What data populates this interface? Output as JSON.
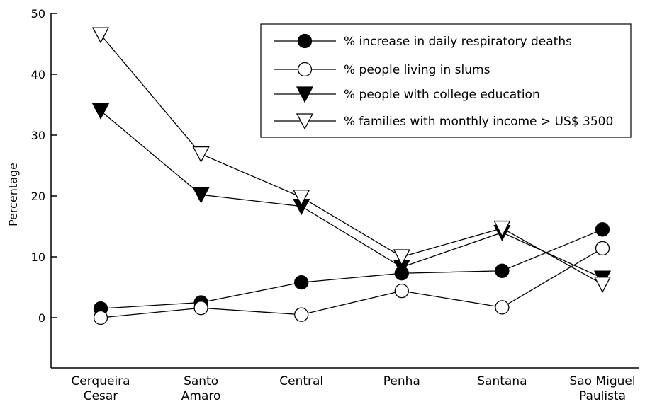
{
  "chart_data": {
    "type": "line",
    "categories": [
      [
        "Cerqueira",
        "Cesar"
      ],
      [
        "Santo",
        "Amaro"
      ],
      [
        "Central"
      ],
      [
        "Penha"
      ],
      [
        "Santana"
      ],
      [
        "Sao Miguel",
        "Paulista"
      ]
    ],
    "ylabel": "Percentage",
    "ylim": [
      -9,
      50
    ],
    "yticks": [
      0,
      10,
      20,
      30,
      40,
      50
    ],
    "legend_position": "top-right",
    "series": [
      {
        "name": "% increase in daily respiratory deaths",
        "marker": "circle-filled",
        "values": [
          1.5,
          2.5,
          5.8,
          7.3,
          7.7,
          14.5
        ]
      },
      {
        "name": "% people living in slums",
        "marker": "circle-open",
        "values": [
          0.0,
          1.6,
          0.5,
          4.4,
          1.7,
          11.4
        ]
      },
      {
        "name": "% people with college education",
        "marker": "triangle-down-filled",
        "values": [
          34.0,
          20.2,
          18.3,
          8.3,
          14.0,
          6.5
        ]
      },
      {
        "name": "% families with monthly income > US$ 3500",
        "marker": "triangle-down-open",
        "values": [
          46.5,
          26.9,
          19.8,
          10.0,
          14.7,
          5.5
        ]
      }
    ]
  }
}
